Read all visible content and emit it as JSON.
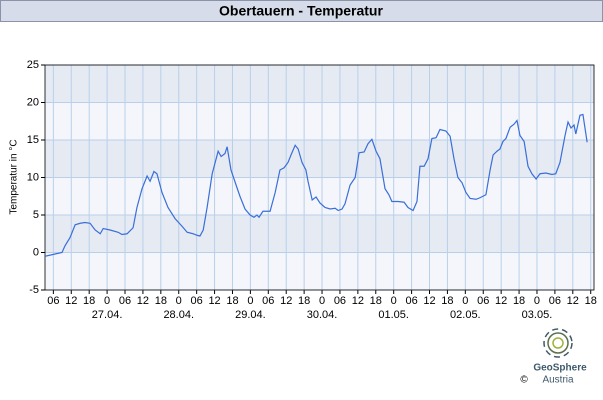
{
  "chart_data": {
    "type": "line",
    "title": "Obertauern - Temperatur",
    "ylabel": "Temperatur in °C",
    "x": [
      -20.8,
      -17.4,
      -15.1,
      -14.1,
      -12.4,
      -10.7,
      -9.0,
      -7.4,
      -5.7,
      -4.0,
      -2.3,
      -1.3,
      1.0,
      3.7,
      5.0,
      6.7,
      8.7,
      10.0,
      11.7,
      13.4,
      14.4,
      15.7,
      16.7,
      18.4,
      20.4,
      22.8,
      25.1,
      26.8,
      28.8,
      30.1,
      31.1,
      32.2,
      33.5,
      35.2,
      37.2,
      38.2,
      39.5,
      40.2,
      41.5,
      43.2,
      44.5,
      46.2,
      47.9,
      49.2,
      50.2,
      50.9,
      52.2,
      54.6,
      56.3,
      57.9,
      59.3,
      60.6,
      61.6,
      63.0,
      64.0,
      65.3,
      66.6,
      67.3,
      68.7,
      70.0,
      71.3,
      73.0,
      74.7,
      76.4,
      77.4,
      78.7,
      79.7,
      81.4,
      83.1,
      84.4,
      86.1,
      87.4,
      88.7,
      90.1,
      91.4,
      93.1,
      94.4,
      95.4,
      97.5,
      99.5,
      100.8,
      102.5,
      103.8,
      104.8,
      106.2,
      107.5,
      108.8,
      110.2,
      111.5,
      113.5,
      114.9,
      116.2,
      117.5,
      118.9,
      120.2,
      121.6,
      123.6,
      124.9,
      126.9,
      128.3,
      129.3,
      130.6,
      131.6,
      132.6,
      133.6,
      135.0,
      136.3,
      137.3,
      138.3,
      139.7,
      141.0,
      142.3,
      143.7,
      145.0,
      147.0,
      149.0,
      150.3,
      151.7,
      153.4,
      154.4,
      155.4,
      156.4,
      157.0,
      158.4,
      159.4,
      160.8
    ],
    "series": [
      {
        "color": "#3a6fd8",
        "values": [
          -0.5,
          -0.2,
          0,
          0.9,
          2,
          3.7,
          3.9,
          4,
          3.9,
          3,
          2.5,
          3.2,
          3,
          2.7,
          2.4,
          2.5,
          3.3,
          6,
          8.5,
          10.2,
          9.5,
          10.8,
          10.5,
          8,
          6,
          4.5,
          3.5,
          2.7,
          2.5,
          2.3,
          2.2,
          3,
          6,
          10.5,
          13.5,
          12.8,
          13.2,
          14.1,
          11,
          9,
          7.5,
          5.8,
          5,
          4.7,
          5,
          4.7,
          5.5,
          5.5,
          8,
          11,
          11.3,
          12,
          13,
          14.3,
          13.8,
          12,
          11,
          9.5,
          7,
          7.4,
          6.6,
          6,
          5.8,
          5.9,
          5.6,
          5.8,
          6.5,
          9,
          10,
          13.3,
          13.4,
          14.5,
          15.1,
          13.5,
          12.5,
          8.5,
          7.7,
          6.8,
          6.8,
          6.7,
          6,
          5.6,
          6.8,
          11.5,
          11.5,
          12.5,
          15.2,
          15.3,
          16.4,
          16.2,
          15.5,
          12.5,
          10,
          9.3,
          8,
          7.2,
          7.1,
          7.3,
          7.7,
          11,
          13,
          13.5,
          13.8,
          14.8,
          15.2,
          16.7,
          17.1,
          17.6,
          15.6,
          14.8,
          11.5,
          10.5,
          9.8,
          10.5,
          10.6,
          10.4,
          10.5,
          12,
          15.6,
          17.4,
          16.6,
          17,
          15.8,
          18.3,
          18.4,
          14.7
        ]
      }
    ],
    "xlim": [
      -20.8,
      163.1
    ],
    "xticks": [
      {
        "value": -18,
        "label": "06"
      },
      {
        "value": -12,
        "label": "12"
      },
      {
        "value": -6,
        "label": "18"
      },
      {
        "value": 0,
        "label": "0"
      },
      {
        "value": 6,
        "label": "06"
      },
      {
        "value": 12,
        "label": "12"
      },
      {
        "value": 18,
        "label": "18"
      },
      {
        "value": 24,
        "label": "0"
      },
      {
        "value": 30,
        "label": "06"
      },
      {
        "value": 36,
        "label": "12"
      },
      {
        "value": 42,
        "label": "18"
      },
      {
        "value": 48,
        "label": "0"
      },
      {
        "value": 54,
        "label": "06"
      },
      {
        "value": 60,
        "label": "12"
      },
      {
        "value": 66,
        "label": "18"
      },
      {
        "value": 72,
        "label": "0"
      },
      {
        "value": 78,
        "label": "06"
      },
      {
        "value": 84,
        "label": "12"
      },
      {
        "value": 90,
        "label": "18"
      },
      {
        "value": 96,
        "label": "0"
      },
      {
        "value": 102,
        "label": "06"
      },
      {
        "value": 108,
        "label": "12"
      },
      {
        "value": 114,
        "label": "18"
      },
      {
        "value": 120,
        "label": "0"
      },
      {
        "value": 126,
        "label": "06"
      },
      {
        "value": 132,
        "label": "12"
      },
      {
        "value": 138,
        "label": "18"
      },
      {
        "value": 144,
        "label": "0"
      },
      {
        "value": 150,
        "label": "06"
      },
      {
        "value": 156,
        "label": "12"
      },
      {
        "value": 162,
        "label": "18"
      }
    ],
    "date_ticks": [
      {
        "value": 0,
        "label": "27.04."
      },
      {
        "value": 24,
        "label": "28.04."
      },
      {
        "value": 48,
        "label": "29.04."
      },
      {
        "value": 72,
        "label": "30.04."
      },
      {
        "value": 96,
        "label": "01.05."
      },
      {
        "value": 120,
        "label": "02.05."
      },
      {
        "value": 144,
        "label": "03.05."
      }
    ],
    "ylim": [
      -5,
      25
    ],
    "yticks": [
      -5,
      0,
      5,
      10,
      15,
      20,
      25
    ],
    "band_colors": [
      "#f4f6fb",
      "#e6eaf3"
    ],
    "grid_color": "#b8d0ea",
    "logo": {
      "name": "GeoSphere",
      "sub": "Austria",
      "copyright": "©"
    }
  }
}
